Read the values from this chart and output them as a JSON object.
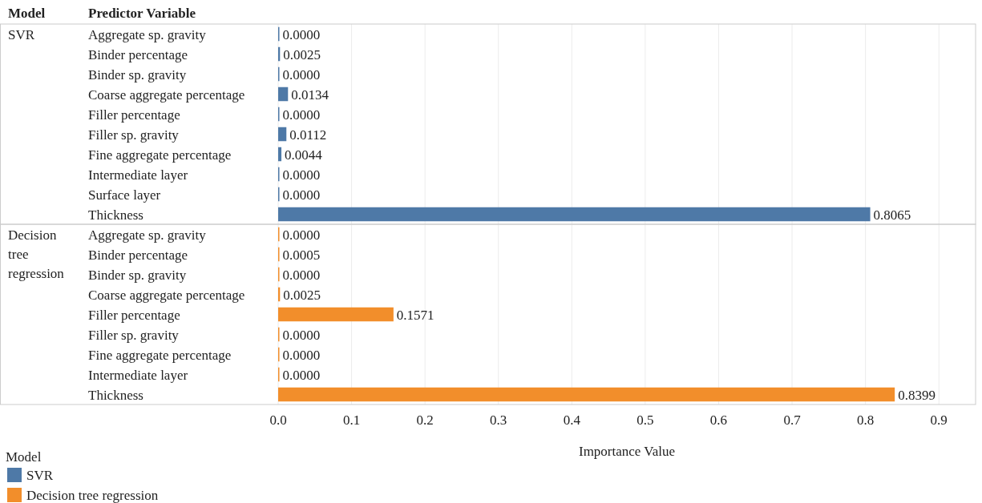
{
  "chart_data": {
    "type": "bar",
    "orientation": "horizontal",
    "ylabel": "Predictor Variable",
    "xlabel": "Importance Value",
    "legend_title": "Model",
    "annotations": [
      "Model"
    ],
    "categories": [
      "Aggregate sp. gravity",
      "Binder percentage",
      "Binder sp. gravity",
      "Coarse aggregate percentage",
      "Filler percentage",
      "Filler sp. gravity",
      "Fine aggregate percentage",
      "Intermediate layer",
      "Surface layer",
      "Thickness",
      "Aggregate sp. gravity",
      "Binder percentage",
      "Binder sp. gravity",
      "Coarse aggregate percentage",
      "Filler percentage",
      "Filler sp. gravity",
      "Fine aggregate percentage",
      "Intermediate layer",
      "Thickness"
    ],
    "series": [
      {
        "name": "SVR",
        "color": "#4e79a7",
        "values": [
          0,
          0.0025,
          0,
          0.0134,
          0,
          0.0112,
          0.0044,
          0,
          0,
          0.8065,
          null,
          null,
          null,
          null,
          null,
          null,
          null,
          null,
          null
        ],
        "value_labels": [
          "0.0000",
          "0.0025",
          "0.0000",
          "0.0134",
          "0.0000",
          "0.0112",
          "0.0044",
          "0.0000",
          "0.0000",
          "0.8065",
          null,
          null,
          null,
          null,
          null,
          null,
          null,
          null,
          null
        ]
      },
      {
        "name": "Decision tree regression",
        "color": "#f28e2b",
        "values": [
          null,
          null,
          null,
          null,
          null,
          null,
          null,
          null,
          null,
          null,
          0,
          0.0005,
          0,
          0.0025,
          0.1571,
          0,
          0,
          0,
          0.8399
        ],
        "value_labels": [
          null,
          null,
          null,
          null,
          null,
          null,
          null,
          null,
          null,
          null,
          "0.0000",
          "0.0005",
          "0.0000",
          "0.0025",
          "0.1571",
          "0.0000",
          "0.0000",
          "0.0000",
          "0.8399"
        ]
      }
    ],
    "xlim": [
      0,
      0.95
    ],
    "xticks": [
      {
        "value": 0,
        "label": "0.0"
      },
      {
        "value": 0.1,
        "label": "0.1"
      },
      {
        "value": 0.2,
        "label": "0.2"
      },
      {
        "value": 0.3,
        "label": "0.3"
      },
      {
        "value": 0.4,
        "label": "0.4"
      },
      {
        "value": 0.5,
        "label": "0.5"
      },
      {
        "value": 0.6,
        "label": "0.6"
      },
      {
        "value": 0.7,
        "label": "0.7"
      },
      {
        "value": 0.8,
        "label": "0.8"
      },
      {
        "value": 0.9,
        "label": "0.9"
      }
    ],
    "grid": "x",
    "legend": "bottom left"
  }
}
